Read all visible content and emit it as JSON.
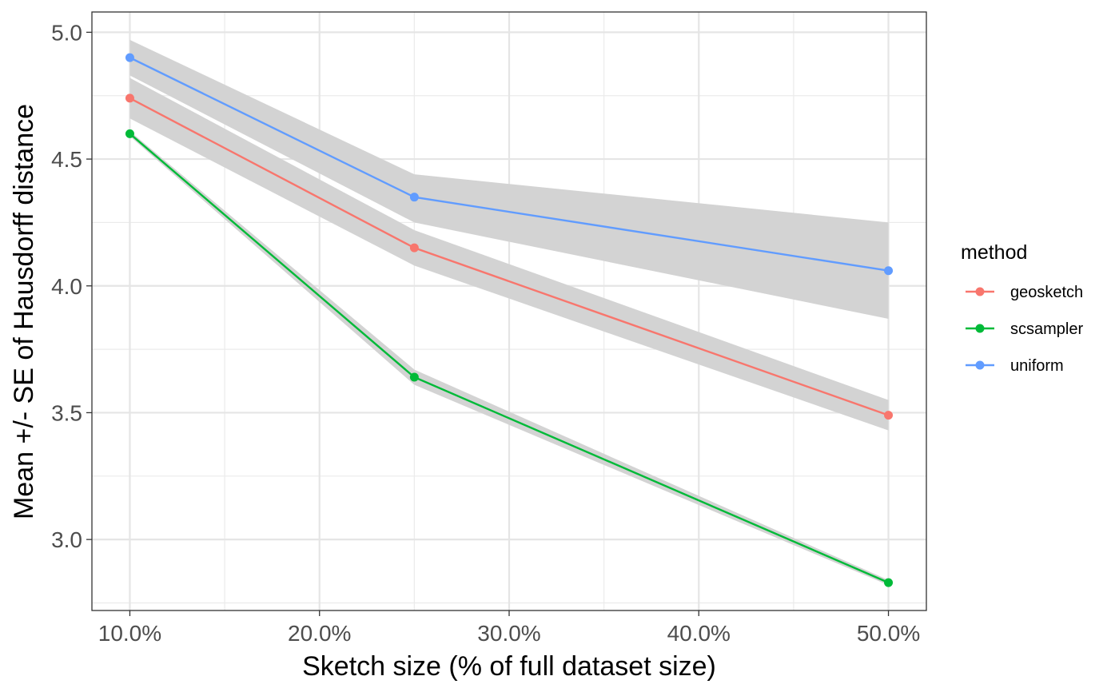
{
  "chart_data": {
    "type": "line",
    "xlabel": "Sketch size (% of full dataset size)",
    "ylabel": "Mean +/- SE of Hausdorff distance",
    "x": [
      10,
      25,
      50
    ],
    "xlim": [
      8.0,
      52.0
    ],
    "ylim": [
      2.72,
      5.08
    ],
    "x_ticks": [
      10,
      20,
      30,
      40,
      50
    ],
    "x_tick_labels": [
      "10.0%",
      "20.0%",
      "30.0%",
      "40.0%",
      "50.0%"
    ],
    "y_ticks": [
      3.0,
      3.5,
      4.0,
      4.5,
      5.0
    ],
    "y_tick_labels": [
      "3.0",
      "3.5",
      "4.0",
      "4.5",
      "5.0"
    ],
    "grid": true,
    "legend_title": "method",
    "legend_position": "right",
    "series": [
      {
        "name": "geosketch",
        "color": "#F8766D",
        "values": [
          4.74,
          4.15,
          3.49
        ],
        "lower": [
          4.66,
          4.08,
          3.43
        ],
        "upper": [
          4.82,
          4.22,
          3.55
        ]
      },
      {
        "name": "scsampler",
        "color": "#00BA38",
        "values": [
          4.6,
          3.64,
          2.83
        ],
        "lower": [
          4.59,
          3.61,
          2.82
        ],
        "upper": [
          4.61,
          3.67,
          2.84
        ]
      },
      {
        "name": "uniform",
        "color": "#619CFF",
        "values": [
          4.9,
          4.35,
          4.06
        ],
        "lower": [
          4.83,
          4.25,
          3.87
        ],
        "upper": [
          4.97,
          4.44,
          4.25
        ]
      }
    ],
    "ribbon_color": "#d3d3d3"
  }
}
